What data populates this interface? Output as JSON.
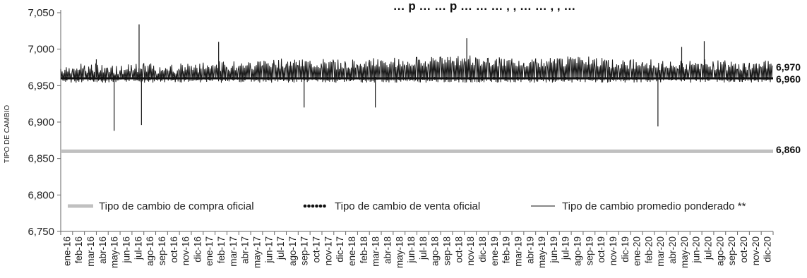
{
  "chart_data": {
    "type": "line",
    "title": "… p … … p … … … , , … … , , …",
    "ylabel": "TIPO DE CAMBIO",
    "xlabel": "",
    "ylim": [
      6.75,
      7.05
    ],
    "y_ticks": [
      6.75,
      6.8,
      6.85,
      6.9,
      6.95,
      7.0,
      7.05
    ],
    "y_tick_labels": [
      "6,750",
      "6,800",
      "6,850",
      "6,900",
      "6,950",
      "7,000",
      "7,050"
    ],
    "categories": [
      "ene-16",
      "feb-16",
      "mar-16",
      "abr-16",
      "may-16",
      "jun-16",
      "jul-16",
      "ago-16",
      "sep-16",
      "oct-16",
      "nov-16",
      "dic-16",
      "ene-17",
      "feb-17",
      "mar-17",
      "abr-17",
      "may-17",
      "jun-17",
      "jul-17",
      "ago-17",
      "sep-17",
      "oct-17",
      "nov-17",
      "dic-17",
      "ene-18",
      "feb-18",
      "mar-18",
      "abr-18",
      "may-18",
      "jun-18",
      "jul-18",
      "ago-18",
      "sep-18",
      "oct-18",
      "nov-18",
      "dic-18",
      "ene-19",
      "feb-19",
      "mar-19",
      "abr-19",
      "may-19",
      "jun-19",
      "jul-19",
      "ago-19",
      "sep-19",
      "oct-19",
      "nov-19",
      "dic-19",
      "ene-20",
      "feb-20",
      "mar-20",
      "abr-20",
      "may-20",
      "jun-20",
      "jul-20",
      "ago-20",
      "sep-20",
      "oct-20",
      "nov-20",
      "dic-20"
    ],
    "x_tick_labels": [
      "ene-16",
      "feb-16",
      "mar-16",
      "abr-16",
      "may-16",
      "jun-16",
      "jul-16",
      "ago-16",
      "sep-16",
      "oct-16",
      "nov-16",
      "dic-16",
      "ene-17",
      "feb-17",
      "mar-17",
      "abr-17",
      "may-17",
      "jun-17",
      "jul-17",
      "ago-17",
      "sep-17",
      "oct-17",
      "nov-17",
      "dic-17",
      "ene-18",
      "feb-18",
      "mar-18",
      "abr-18",
      "may-18",
      "jun-18",
      "jul-18",
      "ago-18",
      "sep-18",
      "oct-18",
      "nov-18",
      "dic-18",
      "ene-19",
      "feb-19",
      "mar-19",
      "abr-19",
      "may-19",
      "jun-19",
      "jul-19",
      "ago-19",
      "sep-19",
      "oct-19",
      "nov-19",
      "dic-19",
      "ene-20",
      "feb-20",
      "mar-20",
      "abr-20",
      "may-20",
      "jun-20",
      "jul-20",
      "ago-20",
      "sep-20",
      "oct-20",
      "nov-20",
      "dic-20"
    ],
    "series": [
      {
        "name": "Tipo de cambio de compra oficial",
        "color": "#c0c0c0",
        "values": [
          6.86,
          6.86,
          6.86,
          6.86,
          6.86,
          6.86,
          6.86,
          6.86,
          6.86,
          6.86,
          6.86,
          6.86,
          6.86,
          6.86,
          6.86,
          6.86,
          6.86,
          6.86,
          6.86,
          6.86,
          6.86,
          6.86,
          6.86,
          6.86,
          6.86,
          6.86,
          6.86,
          6.86,
          6.86,
          6.86,
          6.86,
          6.86,
          6.86,
          6.86,
          6.86,
          6.86,
          6.86,
          6.86,
          6.86,
          6.86,
          6.86,
          6.86,
          6.86,
          6.86,
          6.86,
          6.86,
          6.86,
          6.86,
          6.86,
          6.86,
          6.86,
          6.86,
          6.86,
          6.86,
          6.86,
          6.86,
          6.86,
          6.86,
          6.86,
          6.86
        ],
        "end_label": "6,860"
      },
      {
        "name": "Tipo de cambio de venta oficial",
        "color": "#111111",
        "values": [
          6.96,
          6.96,
          6.96,
          6.96,
          6.96,
          6.96,
          6.96,
          6.96,
          6.96,
          6.96,
          6.96,
          6.96,
          6.96,
          6.96,
          6.96,
          6.96,
          6.96,
          6.96,
          6.96,
          6.96,
          6.96,
          6.96,
          6.96,
          6.96,
          6.96,
          6.96,
          6.96,
          6.96,
          6.96,
          6.96,
          6.96,
          6.96,
          6.96,
          6.96,
          6.96,
          6.96,
          6.96,
          6.96,
          6.96,
          6.96,
          6.96,
          6.96,
          6.96,
          6.96,
          6.96,
          6.96,
          6.96,
          6.96,
          6.96,
          6.96,
          6.96,
          6.96,
          6.96,
          6.96,
          6.96,
          6.96,
          6.96,
          6.96,
          6.96,
          6.96
        ],
        "end_label": "6,960"
      },
      {
        "name": "Tipo de cambio promedio ponderado **",
        "color": "#1a1a1a",
        "values": [
          6.962,
          6.963,
          6.963,
          6.964,
          6.961,
          6.962,
          6.963,
          6.964,
          6.962,
          6.962,
          6.963,
          6.963,
          6.965,
          6.966,
          6.966,
          6.967,
          6.968,
          6.968,
          6.969,
          6.969,
          6.968,
          6.969,
          6.969,
          6.968,
          6.969,
          6.97,
          6.97,
          6.97,
          6.971,
          6.971,
          6.972,
          6.972,
          6.973,
          6.973,
          6.974,
          6.972,
          6.971,
          6.97,
          6.97,
          6.97,
          6.97,
          6.971,
          6.972,
          6.973,
          6.972,
          6.97,
          6.969,
          6.969,
          6.969,
          6.968,
          6.966,
          6.965,
          6.966,
          6.967,
          6.968,
          6.967,
          6.966,
          6.966,
          6.967,
          6.968
        ],
        "spikes": [
          {
            "x": 3,
            "value": 6.986
          },
          {
            "x": 4.5,
            "value": 6.888
          },
          {
            "x": 6.6,
            "value": 7.034
          },
          {
            "x": 6.8,
            "value": 6.896
          },
          {
            "x": 13.3,
            "value": 7.01
          },
          {
            "x": 20.5,
            "value": 6.92
          },
          {
            "x": 26.5,
            "value": 6.92
          },
          {
            "x": 34.2,
            "value": 7.015
          },
          {
            "x": 50.3,
            "value": 6.894
          },
          {
            "x": 52.3,
            "value": 7.003
          },
          {
            "x": 54.2,
            "value": 7.011
          }
        ],
        "end_label": "6,970"
      }
    ],
    "legend": {
      "placement": "bottom-inside",
      "items": [
        {
          "label": "Tipo de cambio de compra oficial",
          "style": "thick-gray-line"
        },
        {
          "label": "Tipo de cambio de venta oficial",
          "style": "dotted-black-line"
        },
        {
          "label": "Tipo de cambio promedio ponderado **",
          "style": "thin-black-line"
        }
      ]
    },
    "grid": false
  }
}
